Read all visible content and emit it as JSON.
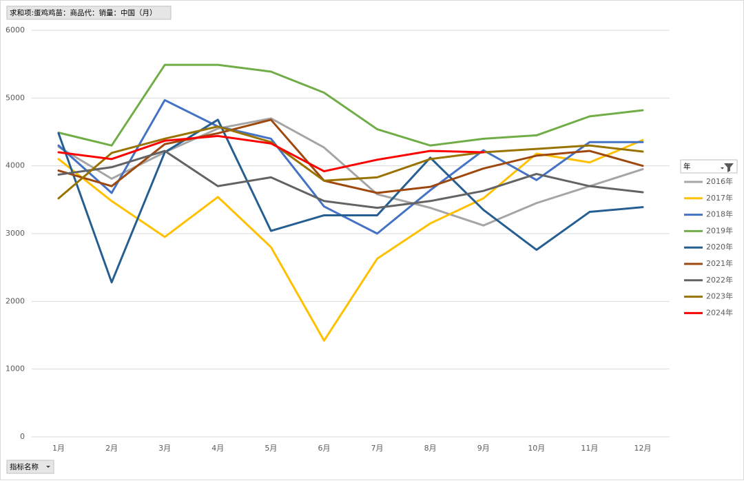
{
  "chart_data": {
    "type": "line",
    "title": "求和项:蛋鸡鸡苗：商品代：销量：中国（月）",
    "legend_title": "年",
    "axis_field_button": "指标名称",
    "categories": [
      "1月",
      "2月",
      "3月",
      "4月",
      "5月",
      "6月",
      "7月",
      "8月",
      "9月",
      "10月",
      "11月",
      "12月"
    ],
    "ylim": [
      0,
      6000
    ],
    "yticks": [
      0,
      1000,
      2000,
      3000,
      4000,
      5000,
      6000
    ],
    "grid": true,
    "legend": "right",
    "series": [
      {
        "name": "2016年",
        "color": "#a5a5a5",
        "values": [
          4280,
          3810,
          4200,
          4550,
          4700,
          4270,
          3580,
          3380,
          3120,
          3450,
          3700,
          3950
        ]
      },
      {
        "name": "2017年",
        "color": "#ffc000",
        "values": [
          4100,
          3480,
          2950,
          3540,
          2800,
          1420,
          2630,
          3150,
          3520,
          4180,
          4050,
          4380
        ]
      },
      {
        "name": "2018年",
        "color": "#4472c4",
        "values": [
          4300,
          3600,
          4970,
          4580,
          4400,
          3400,
          3000,
          3640,
          4230,
          3790,
          4350,
          4350
        ]
      },
      {
        "name": "2019年",
        "color": "#70ad47",
        "values": [
          4490,
          4300,
          5490,
          5490,
          5390,
          5080,
          4540,
          4300,
          4400,
          4450,
          4730,
          4820
        ]
      },
      {
        "name": "2020年",
        "color": "#255e91",
        "values": [
          4480,
          2280,
          4200,
          4680,
          3040,
          3270,
          3270,
          4120,
          3350,
          2760,
          3320,
          3390
        ]
      },
      {
        "name": "2021年",
        "color": "#9e480e",
        "values": [
          3930,
          3700,
          4320,
          4480,
          4680,
          3780,
          3600,
          3690,
          3960,
          4150,
          4220,
          4000
        ]
      },
      {
        "name": "2022年",
        "color": "#636363",
        "values": [
          3870,
          3980,
          4220,
          3700,
          3830,
          3480,
          3380,
          3480,
          3630,
          3880,
          3700,
          3610
        ]
      },
      {
        "name": "2023年",
        "color": "#997300",
        "values": [
          3520,
          4190,
          4400,
          4580,
          4350,
          3780,
          3830,
          4100,
          4200,
          4250,
          4300,
          4210
        ]
      },
      {
        "name": "2024年",
        "color": "#ff0000",
        "values": [
          4200,
          4100,
          4370,
          4440,
          4330,
          3920,
          4090,
          4220,
          4200,
          null,
          null,
          null
        ]
      }
    ]
  }
}
